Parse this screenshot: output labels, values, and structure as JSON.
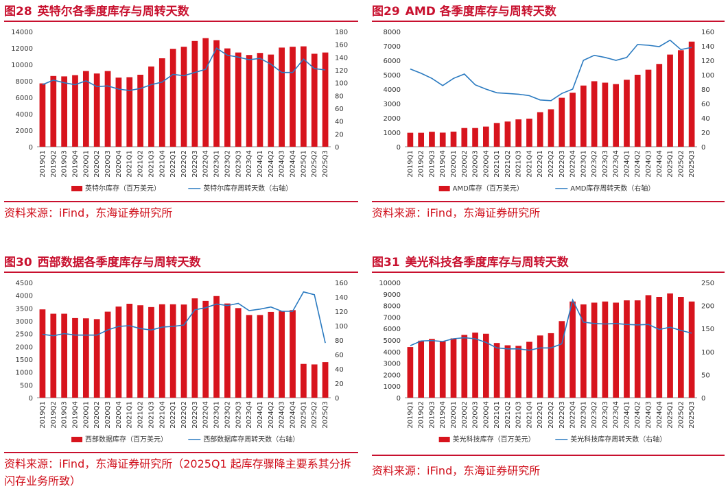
{
  "colors": {
    "bar": "#d7141d",
    "line": "#2a7ac0",
    "accent": "#c8102e",
    "source": "#d0101c"
  },
  "charts": [
    {
      "figure_label": "图28",
      "title": "英特尔各季度库存与周转天数",
      "source": "资料来源：iFind，东海证券研究所",
      "legend_bar": "英特尔库存（百万美元）",
      "legend_line": "英特尔库存周转天数（右轴）"
    },
    {
      "figure_label": "图29",
      "title": "AMD 各季度库存与周转天数",
      "source": "资料来源：iFind，东海证券研究所",
      "legend_bar": "AMD库存（百万美元）",
      "legend_line": "AMD库存周转天数（右轴）"
    },
    {
      "figure_label": "图30",
      "title": "西部数据各季度库存与周转天数",
      "source": "资料来源：iFind，东海证券研究所（2025Q1 起库存骤降主要系其分拆闪存业务所致）",
      "legend_bar": "西部数据库存（百万美元）",
      "legend_line": "西部数据库存周转天数（右轴）"
    },
    {
      "figure_label": "图31",
      "title": "美光科技各季度库存与周转天数",
      "source": "资料来源：iFind，东海证券研究所",
      "legend_bar": "美光科技库存（百万美元）",
      "legend_line": "美光科技库存周转天数（右轴）"
    }
  ],
  "chart_data": [
    {
      "type": "bar",
      "categories": [
        "2019Q1",
        "2019Q2",
        "2019Q3",
        "2019Q4",
        "2020Q1",
        "2020Q2",
        "2020Q3",
        "2020Q4",
        "2021Q1",
        "2021Q2",
        "2021Q3",
        "2021Q4",
        "2022Q1",
        "2022Q2",
        "2022Q3",
        "2022Q4",
        "2023Q1",
        "2023Q2",
        "2023Q3",
        "2023Q4",
        "2024Q1",
        "2024Q2",
        "2024Q3",
        "2024Q4",
        "2025Q1",
        "2025Q2",
        "2025Q3"
      ],
      "title": "英特尔各季度库存与周转天数",
      "ylim": [
        0,
        14000
      ],
      "y_ticks": [
        0,
        2000,
        4000,
        6000,
        8000,
        10000,
        12000,
        14000
      ],
      "y2lim": [
        0,
        180
      ],
      "y2_ticks": [
        0,
        20,
        40,
        60,
        80,
        100,
        120,
        140,
        160,
        180
      ],
      "series": [
        {
          "name": "英特尔库存（百万美元）",
          "type": "bar",
          "axis": "left",
          "values": [
            7700,
            8600,
            8550,
            8700,
            9200,
            8900,
            9200,
            8400,
            8450,
            8750,
            9750,
            10750,
            11900,
            12150,
            12850,
            13200,
            12950,
            11950,
            11450,
            11150,
            11400,
            11200,
            12050,
            12150,
            12200,
            11300,
            11450
          ]
        },
        {
          "name": "英特尔库存周转天数（右轴）",
          "type": "line",
          "axis": "right",
          "values": [
            97,
            104,
            100,
            97,
            103,
            94,
            95,
            90,
            88,
            91,
            97,
            101,
            113,
            111,
            116,
            121,
            154,
            143,
            140,
            136,
            138,
            129,
            116,
            116,
            137,
            122,
            120
          ]
        }
      ]
    },
    {
      "type": "bar",
      "categories": [
        "2019Q1",
        "2019Q2",
        "2019Q3",
        "2019Q4",
        "2020Q1",
        "2020Q2",
        "2020Q3",
        "2020Q4",
        "2021Q1",
        "2021Q2",
        "2021Q3",
        "2021Q4",
        "2022Q1",
        "2022Q2",
        "2022Q3",
        "2022Q4",
        "2023Q1",
        "2023Q2",
        "2023Q3",
        "2023Q4",
        "2024Q1",
        "2024Q2",
        "2024Q3",
        "2024Q4",
        "2025Q1",
        "2025Q2",
        "2025Q3"
      ],
      "title": "AMD 各季度库存与周转天数",
      "ylim": [
        0,
        8000
      ],
      "y_ticks": [
        0,
        1000,
        2000,
        3000,
        4000,
        5000,
        6000,
        7000,
        8000
      ],
      "y2lim": [
        0,
        160
      ],
      "y2_ticks": [
        0,
        20,
        40,
        60,
        80,
        100,
        120,
        140,
        160
      ],
      "series": [
        {
          "name": "AMD库存（百万美元）",
          "type": "bar",
          "axis": "left",
          "values": [
            970,
            970,
            1040,
            980,
            1050,
            1300,
            1300,
            1400,
            1650,
            1750,
            1900,
            1950,
            2400,
            2600,
            3400,
            3750,
            4250,
            4550,
            4450,
            4350,
            4650,
            5000,
            5350,
            5750,
            6400,
            6700,
            7300
          ]
        },
        {
          "name": "AMD库存周转天数（右轴）",
          "type": "line",
          "axis": "right",
          "values": [
            108,
            102,
            95,
            85,
            95,
            101,
            86,
            80,
            75,
            74,
            73,
            71,
            65,
            64,
            74,
            80,
            120,
            127,
            124,
            120,
            124,
            142,
            141,
            139,
            148,
            135,
            138
          ]
        }
      ]
    },
    {
      "type": "bar",
      "categories": [
        "2019Q1",
        "2019Q2",
        "2019Q3",
        "2019Q4",
        "2020Q1",
        "2020Q2",
        "2020Q3",
        "2020Q4",
        "2021Q1",
        "2021Q2",
        "2021Q3",
        "2021Q4",
        "2022Q1",
        "2022Q2",
        "2022Q3",
        "2022Q4",
        "2023Q1",
        "2023Q2",
        "2023Q3",
        "2023Q4",
        "2024Q1",
        "2024Q2",
        "2024Q3",
        "2024Q4",
        "2025Q1",
        "2025Q2",
        "2025Q3"
      ],
      "title": "西部数据各季度库存与周转天数",
      "ylim": [
        0,
        4500
      ],
      "y_ticks": [
        0,
        500,
        1000,
        1500,
        2000,
        2500,
        3000,
        3500,
        4000,
        4500
      ],
      "y2lim": [
        0,
        160
      ],
      "y2_ticks": [
        0,
        20,
        40,
        60,
        80,
        100,
        120,
        140,
        160
      ],
      "series": [
        {
          "name": "西部数据库存（百万美元）",
          "type": "bar",
          "axis": "left",
          "values": [
            3450,
            3280,
            3280,
            3110,
            3100,
            3070,
            3360,
            3560,
            3670,
            3610,
            3540,
            3650,
            3650,
            3640,
            3880,
            3780,
            3970,
            3680,
            3500,
            3230,
            3230,
            3350,
            3380,
            3420,
            1320,
            1300,
            1390
          ]
        },
        {
          "name": "西部数据库存周转天数（右轴）",
          "type": "line",
          "axis": "right",
          "values": [
            88,
            86,
            89,
            87,
            87,
            87,
            94,
            99,
            100,
            96,
            94,
            98,
            99,
            101,
            122,
            125,
            130,
            128,
            131,
            121,
            123,
            126,
            120,
            120,
            147,
            143,
            76
          ]
        }
      ]
    },
    {
      "type": "bar",
      "categories": [
        "2019Q1",
        "2019Q2",
        "2019Q3",
        "2019Q4",
        "2020Q1",
        "2020Q2",
        "2020Q3",
        "2020Q4",
        "2021Q1",
        "2021Q2",
        "2021Q3",
        "2021Q4",
        "2022Q1",
        "2022Q2",
        "2022Q3",
        "2022Q4",
        "2023Q1",
        "2023Q2",
        "2023Q3",
        "2023Q4",
        "2024Q1",
        "2024Q2",
        "2024Q3",
        "2024Q4",
        "2025Q1",
        "2025Q2",
        "2025Q3"
      ],
      "title": "美光科技各季度库存与周转天数",
      "ylim": [
        0,
        10000
      ],
      "y_ticks": [
        0,
        1000,
        2000,
        3000,
        4000,
        5000,
        6000,
        7000,
        8000,
        9000,
        10000
      ],
      "y2lim": [
        0,
        250
      ],
      "y2_ticks": [
        0,
        50,
        100,
        150,
        200,
        250
      ],
      "series": [
        {
          "name": "美光科技库存（百万美元）",
          "type": "bar",
          "axis": "left",
          "values": [
            4400,
            4950,
            5100,
            4900,
            5150,
            5450,
            5650,
            5550,
            4750,
            4550,
            4500,
            4850,
            5400,
            5600,
            6650,
            8350,
            8100,
            8250,
            8350,
            8250,
            8450,
            8450,
            8900,
            8750,
            9050,
            8750,
            8350
          ]
        },
        {
          "name": "美光科技库存周转天数（右轴）",
          "type": "line",
          "axis": "right",
          "values": [
            113,
            123,
            124,
            122,
            128,
            130,
            128,
            120,
            108,
            106,
            106,
            103,
            108,
            108,
            117,
            212,
            164,
            161,
            160,
            161,
            159,
            158,
            159,
            148,
            153,
            146,
            140
          ]
        }
      ]
    }
  ]
}
